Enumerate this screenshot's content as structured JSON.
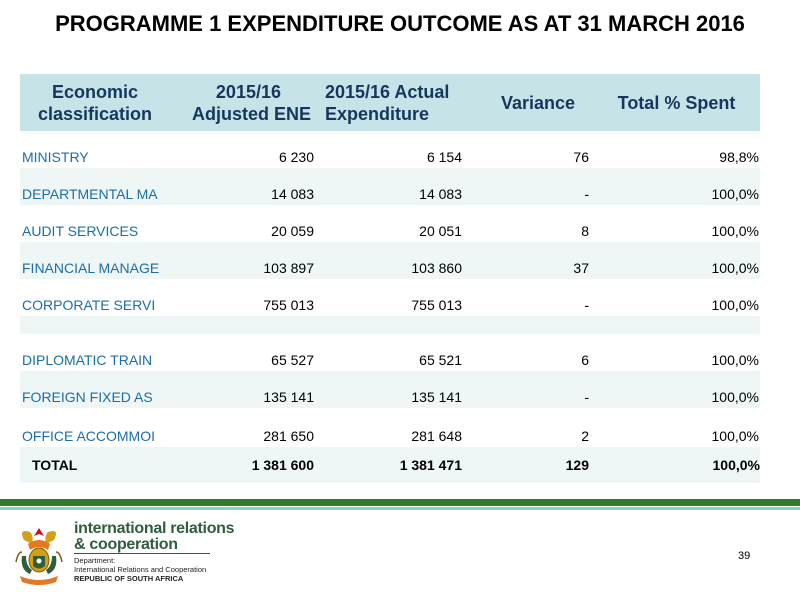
{
  "title": "PROGRAMME 1 EXPENDITURE OUTCOME AS AT 31 MARCH 2016",
  "table": {
    "headers": {
      "col1_line1": "Economic",
      "col1_line2": "classification",
      "col2_line1": "2015/16",
      "col2_line2": "Adjusted ENE",
      "col3_line1": "2015/16 Actual",
      "col3_line2": "Expenditure",
      "col4": "Variance",
      "col5": "Total % Spent"
    },
    "rows": [
      {
        "label": "MINISTRY",
        "adjusted": "6 230",
        "actual": "6 154",
        "variance": "76",
        "pct": "98,8%"
      },
      {
        "label": "DEPARTMENTAL MA",
        "adjusted": "14 083",
        "actual": "14 083",
        "variance": "-",
        "pct": "100,0%"
      },
      {
        "label": "AUDIT SERVICES",
        "adjusted": "20 059",
        "actual": "20 051",
        "variance": "8",
        "pct": "100,0%"
      },
      {
        "label": "FINANCIAL MANAGE",
        "adjusted": "103 897",
        "actual": "103 860",
        "variance": "37",
        "pct": "100,0%"
      },
      {
        "label": "CORPORATE SERVI",
        "adjusted": "755 013",
        "actual": "755 013",
        "variance": "-",
        "pct": "100,0%"
      },
      {
        "label": "DIPLOMATIC TRAIN",
        "adjusted": "65 527",
        "actual": "65 521",
        "variance": "6",
        "pct": "100,0%"
      },
      {
        "label": "FOREIGN FIXED AS",
        "adjusted": "135 141",
        "actual": "135 141",
        "variance": "-",
        "pct": "100,0%"
      },
      {
        "label": "OFFICE ACCOMMOI",
        "adjusted": "281 650",
        "actual": "281 648",
        "variance": "2",
        "pct": "100,0%"
      }
    ],
    "total": {
      "label": "TOTAL",
      "adjusted": "1 381 600",
      "actual": "1 381 471",
      "variance": "129",
      "pct": "100,0%"
    }
  },
  "footer": {
    "brand_line1": "international relations",
    "brand_line2": "& cooperation",
    "dept_line1": "Department:",
    "dept_line2": "International Relations and Cooperation",
    "dept_line3": "REPUBLIC OF SOUTH AFRICA",
    "page_number": "39",
    "logo_icon": "coat-of-arms-icon"
  },
  "colors": {
    "header_bg": "#c6e4e7",
    "header_text": "#17365d",
    "label_text": "#1b6ea8",
    "band_bg": "#eef6f6",
    "green_bar": "#2f7d2a",
    "teal_bar": "#8fcfcf",
    "brand_green": "#2e5e3b"
  }
}
